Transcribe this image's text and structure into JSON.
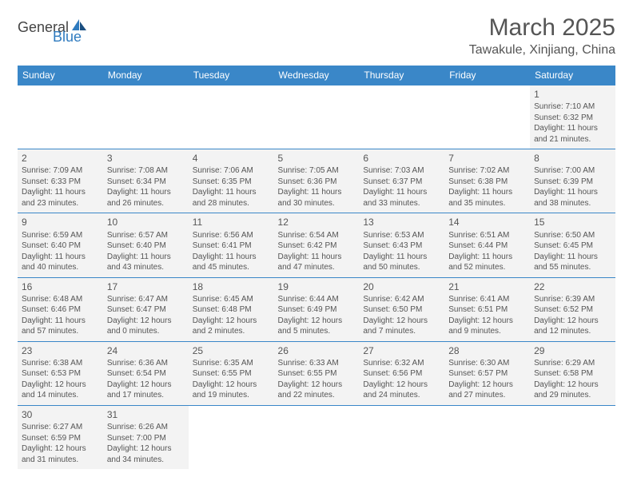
{
  "logo": {
    "general": "General",
    "blue": "Blue"
  },
  "title": "March 2025",
  "location": "Tawakule, Xinjiang, China",
  "colors": {
    "header_bg": "#3a87c8",
    "header_text": "#ffffff",
    "cell_bg": "#f3f3f3",
    "border": "#3a87c8",
    "text": "#555555",
    "logo_blue": "#2f7bbf"
  },
  "weekdays": [
    "Sunday",
    "Monday",
    "Tuesday",
    "Wednesday",
    "Thursday",
    "Friday",
    "Saturday"
  ],
  "days": [
    {
      "n": 1,
      "sr": "7:10 AM",
      "ss": "6:32 PM",
      "dl": "11 hours and 21 minutes."
    },
    {
      "n": 2,
      "sr": "7:09 AM",
      "ss": "6:33 PM",
      "dl": "11 hours and 23 minutes."
    },
    {
      "n": 3,
      "sr": "7:08 AM",
      "ss": "6:34 PM",
      "dl": "11 hours and 26 minutes."
    },
    {
      "n": 4,
      "sr": "7:06 AM",
      "ss": "6:35 PM",
      "dl": "11 hours and 28 minutes."
    },
    {
      "n": 5,
      "sr": "7:05 AM",
      "ss": "6:36 PM",
      "dl": "11 hours and 30 minutes."
    },
    {
      "n": 6,
      "sr": "7:03 AM",
      "ss": "6:37 PM",
      "dl": "11 hours and 33 minutes."
    },
    {
      "n": 7,
      "sr": "7:02 AM",
      "ss": "6:38 PM",
      "dl": "11 hours and 35 minutes."
    },
    {
      "n": 8,
      "sr": "7:00 AM",
      "ss": "6:39 PM",
      "dl": "11 hours and 38 minutes."
    },
    {
      "n": 9,
      "sr": "6:59 AM",
      "ss": "6:40 PM",
      "dl": "11 hours and 40 minutes."
    },
    {
      "n": 10,
      "sr": "6:57 AM",
      "ss": "6:40 PM",
      "dl": "11 hours and 43 minutes."
    },
    {
      "n": 11,
      "sr": "6:56 AM",
      "ss": "6:41 PM",
      "dl": "11 hours and 45 minutes."
    },
    {
      "n": 12,
      "sr": "6:54 AM",
      "ss": "6:42 PM",
      "dl": "11 hours and 47 minutes."
    },
    {
      "n": 13,
      "sr": "6:53 AM",
      "ss": "6:43 PM",
      "dl": "11 hours and 50 minutes."
    },
    {
      "n": 14,
      "sr": "6:51 AM",
      "ss": "6:44 PM",
      "dl": "11 hours and 52 minutes."
    },
    {
      "n": 15,
      "sr": "6:50 AM",
      "ss": "6:45 PM",
      "dl": "11 hours and 55 minutes."
    },
    {
      "n": 16,
      "sr": "6:48 AM",
      "ss": "6:46 PM",
      "dl": "11 hours and 57 minutes."
    },
    {
      "n": 17,
      "sr": "6:47 AM",
      "ss": "6:47 PM",
      "dl": "12 hours and 0 minutes."
    },
    {
      "n": 18,
      "sr": "6:45 AM",
      "ss": "6:48 PM",
      "dl": "12 hours and 2 minutes."
    },
    {
      "n": 19,
      "sr": "6:44 AM",
      "ss": "6:49 PM",
      "dl": "12 hours and 5 minutes."
    },
    {
      "n": 20,
      "sr": "6:42 AM",
      "ss": "6:50 PM",
      "dl": "12 hours and 7 minutes."
    },
    {
      "n": 21,
      "sr": "6:41 AM",
      "ss": "6:51 PM",
      "dl": "12 hours and 9 minutes."
    },
    {
      "n": 22,
      "sr": "6:39 AM",
      "ss": "6:52 PM",
      "dl": "12 hours and 12 minutes."
    },
    {
      "n": 23,
      "sr": "6:38 AM",
      "ss": "6:53 PM",
      "dl": "12 hours and 14 minutes."
    },
    {
      "n": 24,
      "sr": "6:36 AM",
      "ss": "6:54 PM",
      "dl": "12 hours and 17 minutes."
    },
    {
      "n": 25,
      "sr": "6:35 AM",
      "ss": "6:55 PM",
      "dl": "12 hours and 19 minutes."
    },
    {
      "n": 26,
      "sr": "6:33 AM",
      "ss": "6:55 PM",
      "dl": "12 hours and 22 minutes."
    },
    {
      "n": 27,
      "sr": "6:32 AM",
      "ss": "6:56 PM",
      "dl": "12 hours and 24 minutes."
    },
    {
      "n": 28,
      "sr": "6:30 AM",
      "ss": "6:57 PM",
      "dl": "12 hours and 27 minutes."
    },
    {
      "n": 29,
      "sr": "6:29 AM",
      "ss": "6:58 PM",
      "dl": "12 hours and 29 minutes."
    },
    {
      "n": 30,
      "sr": "6:27 AM",
      "ss": "6:59 PM",
      "dl": "12 hours and 31 minutes."
    },
    {
      "n": 31,
      "sr": "6:26 AM",
      "ss": "7:00 PM",
      "dl": "12 hours and 34 minutes."
    }
  ],
  "labels": {
    "sunrise": "Sunrise:",
    "sunset": "Sunset:",
    "daylight": "Daylight:"
  },
  "first_weekday_index": 6
}
